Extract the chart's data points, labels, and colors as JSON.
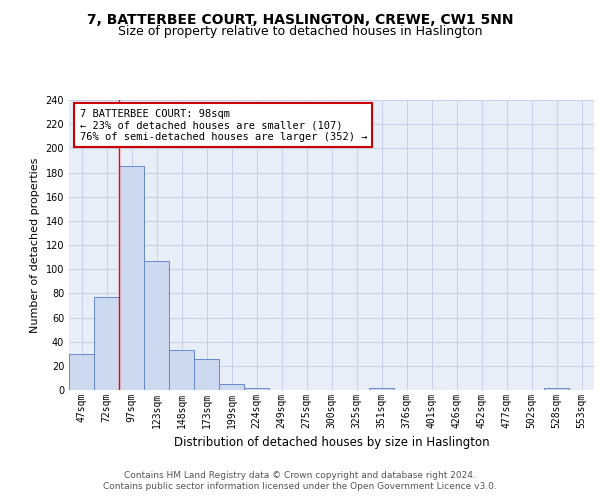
{
  "title": "7, BATTERBEE COURT, HASLINGTON, CREWE, CW1 5NN",
  "subtitle": "Size of property relative to detached houses in Haslington",
  "xlabel": "Distribution of detached houses by size in Haslington",
  "ylabel": "Number of detached properties",
  "bar_color": "#ccd9ee",
  "bar_edge_color": "#6688cc",
  "bg_color": "#e8eef8",
  "grid_color": "#c8d0e8",
  "categories": [
    "47sqm",
    "72sqm",
    "97sqm",
    "123sqm",
    "148sqm",
    "173sqm",
    "199sqm",
    "224sqm",
    "249sqm",
    "275sqm",
    "300sqm",
    "325sqm",
    "351sqm",
    "376sqm",
    "401sqm",
    "426sqm",
    "452sqm",
    "477sqm",
    "502sqm",
    "528sqm",
    "553sqm"
  ],
  "values": [
    30,
    77,
    185,
    107,
    33,
    26,
    5,
    2,
    0,
    0,
    0,
    0,
    2,
    0,
    0,
    0,
    0,
    0,
    0,
    2,
    0
  ],
  "red_line_index": 2,
  "annotation_line1": "7 BATTERBEE COURT: 98sqm",
  "annotation_line2": "← 23% of detached houses are smaller (107)",
  "annotation_line3": "76% of semi-detached houses are larger (352) →",
  "annotation_box_color": "#ffffff",
  "annotation_box_edge_color": "#cc0000",
  "ylim": [
    0,
    240
  ],
  "yticks": [
    0,
    20,
    40,
    60,
    80,
    100,
    120,
    140,
    160,
    180,
    200,
    220,
    240
  ],
  "footnote_line1": "Contains HM Land Registry data © Crown copyright and database right 2024.",
  "footnote_line2": "Contains public sector information licensed under the Open Government Licence v3.0.",
  "title_fontsize": 10,
  "subtitle_fontsize": 9,
  "xlabel_fontsize": 8.5,
  "ylabel_fontsize": 8,
  "tick_fontsize": 7,
  "annotation_fontsize": 7.5,
  "footnote_fontsize": 6.5
}
